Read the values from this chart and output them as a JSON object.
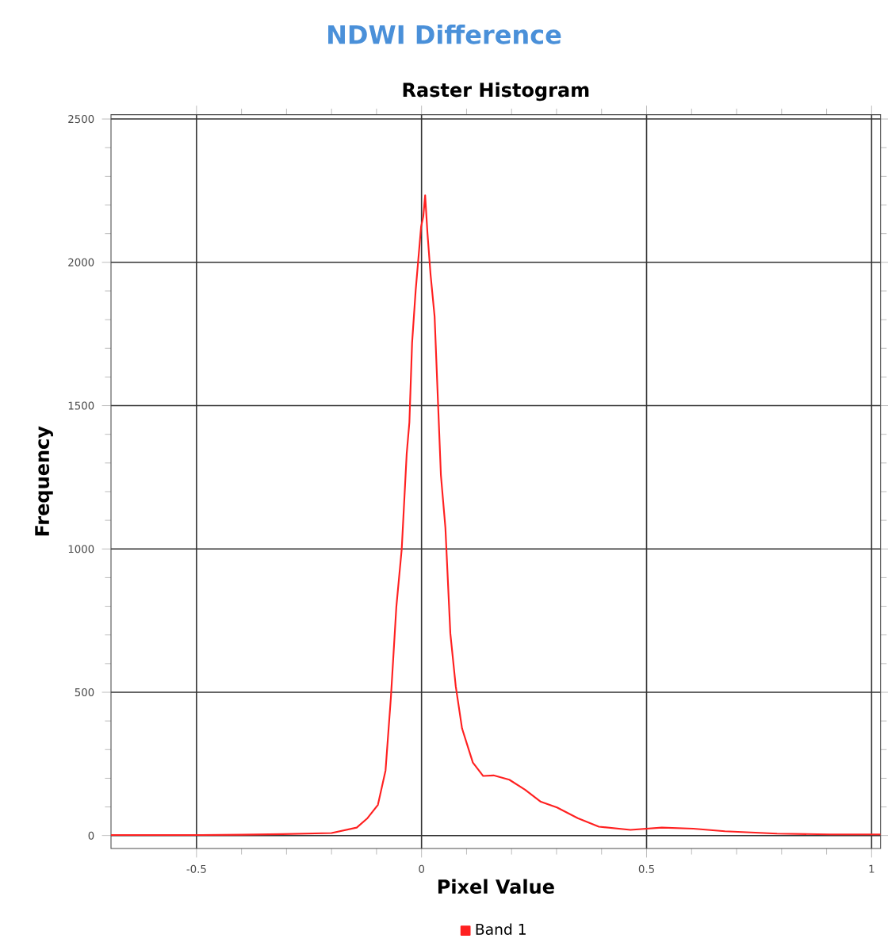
{
  "chart_data": {
    "type": "line",
    "title": "NDWI Difference",
    "subtitle": "Raster Histogram",
    "xlabel": "Pixel Value",
    "ylabel": "Frequency",
    "x": [
      -0.69,
      -0.5,
      -0.4,
      -0.308,
      -0.2,
      -0.144,
      -0.12,
      -0.097,
      -0.08,
      -0.068,
      -0.056,
      -0.044,
      -0.033,
      -0.027,
      -0.021,
      -0.013,
      -0.006,
      -0.001,
      0.004,
      0.008,
      0.013,
      0.02,
      0.029,
      0.036,
      0.043,
      0.053,
      0.064,
      0.076,
      0.09,
      0.101,
      0.114,
      0.137,
      0.16,
      0.195,
      0.23,
      0.265,
      0.301,
      0.347,
      0.394,
      0.464,
      0.534,
      0.604,
      0.674,
      0.79,
      0.907,
      1.02
    ],
    "series": [
      {
        "name": "Band 1",
        "color": "#ff2020",
        "values": [
          2,
          2,
          3,
          5,
          9,
          28,
          61,
          107,
          227,
          484,
          798,
          1000,
          1332,
          1442,
          1719,
          1903,
          2032,
          2124,
          2161,
          2234,
          2105,
          1958,
          1811,
          1534,
          1258,
          1074,
          705,
          521,
          374,
          319,
          255,
          208,
          210,
          195,
          160,
          118,
          98,
          61,
          31,
          20,
          28,
          24,
          15,
          7,
          4,
          4
        ]
      }
    ],
    "xlim": [
      -0.69,
      1.02
    ],
    "ylim": [
      -45,
      2515
    ],
    "xticks": [
      -0.5,
      0,
      0.5,
      1
    ],
    "yticks": [
      0,
      500,
      1000,
      1500,
      2000,
      2500
    ],
    "grid": true,
    "legend": "bottom"
  }
}
